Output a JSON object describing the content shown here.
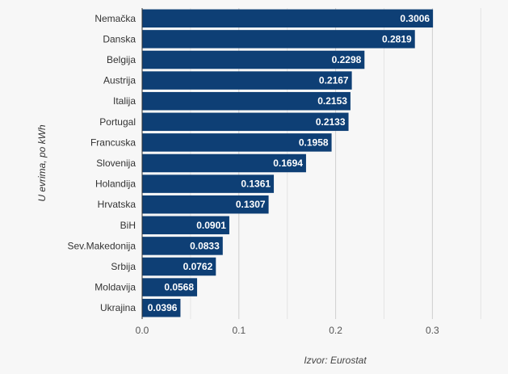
{
  "chart_data": {
    "type": "bar",
    "orientation": "horizontal",
    "categories": [
      "Nemačka",
      "Danska",
      "Belgija",
      "Austrija",
      "Italija",
      "Portugal",
      "Francuska",
      "Slovenija",
      "Holandija",
      "Hrvatska",
      "BiH",
      "Sev.Makedonija",
      "Srbija",
      "Moldavija",
      "Ukrajina"
    ],
    "values": [
      0.3006,
      0.2819,
      0.2298,
      0.2167,
      0.2153,
      0.2133,
      0.1958,
      0.1694,
      0.1361,
      0.1307,
      0.0901,
      0.0833,
      0.0762,
      0.0568,
      0.0396
    ],
    "value_labels": [
      "0.3006",
      "0.2819",
      "0.2298",
      "0.2167",
      "0.2153",
      "0.2133",
      "0.1958",
      "0.1694",
      "0.1361",
      "0.1307",
      "0.0901",
      "0.0833",
      "0.0762",
      "0.0568",
      "0.0396"
    ],
    "title": "",
    "xlabel": "",
    "ylabel": "U evrima, po kWh",
    "source": "Izvor: Eurostat",
    "xlim": [
      0,
      0.36
    ],
    "xticks": [
      0,
      0.1,
      0.2,
      0.3
    ],
    "xtick_labels": [
      "0.0",
      "0.1",
      "0.2",
      "0.3"
    ],
    "minor_gridlines": [
      0.05,
      0.15,
      0.25,
      0.35
    ],
    "grid": true,
    "bar_color": "#0e3f75"
  }
}
